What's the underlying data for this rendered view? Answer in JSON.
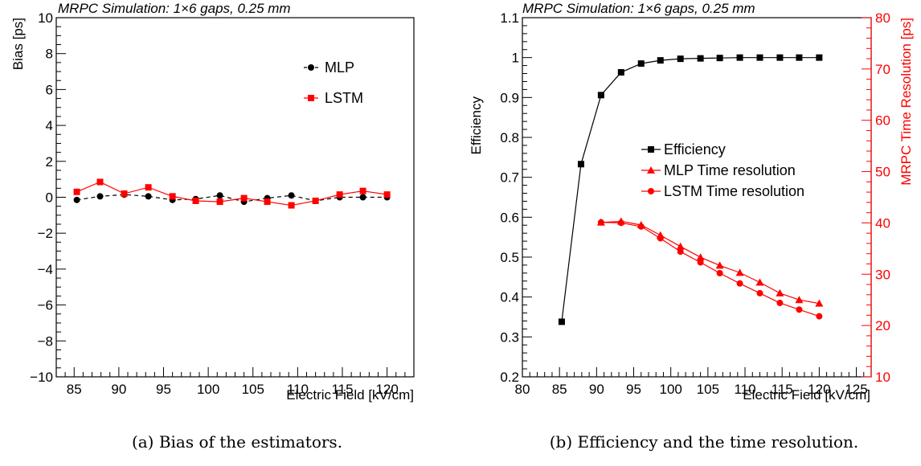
{
  "chart_data": [
    {
      "type": "line",
      "title": "MRPC Simulation: 1×6 gaps, 0.25 mm",
      "xlabel": "Electric Field [kV/cm]",
      "ylabel": "Bias [ps]",
      "xlim": [
        83,
        123
      ],
      "ylim": [
        -10,
        10
      ],
      "xticks": [
        85,
        90,
        95,
        100,
        105,
        110,
        115,
        120
      ],
      "yticks": [
        -10,
        -8,
        -6,
        -4,
        -2,
        0,
        2,
        4,
        6,
        8,
        10
      ],
      "legend_position": "top-right",
      "caption": "(a) Bias of the estimators.",
      "series": [
        {
          "name": "MLP",
          "color": "#000000",
          "marker": "circle",
          "line": "dashed",
          "x": [
            85.3,
            87.9,
            90.6,
            93.3,
            96.0,
            98.6,
            101.3,
            104.0,
            106.6,
            109.3,
            112.0,
            114.7,
            117.3,
            120.0
          ],
          "y": [
            -0.15,
            0.05,
            0.15,
            0.05,
            -0.15,
            -0.1,
            0.1,
            -0.25,
            -0.05,
            0.1,
            -0.2,
            0.0,
            0.0,
            0.0
          ]
        },
        {
          "name": "LSTM",
          "color": "#ff0000",
          "marker": "square",
          "line": "solid",
          "x": [
            85.3,
            87.9,
            90.6,
            93.3,
            96.0,
            98.6,
            101.3,
            104.0,
            106.6,
            109.3,
            112.0,
            114.7,
            117.3,
            120.0
          ],
          "y": [
            0.3,
            0.85,
            0.2,
            0.55,
            0.05,
            -0.2,
            -0.25,
            -0.05,
            -0.25,
            -0.45,
            -0.2,
            0.15,
            0.35,
            0.15
          ]
        }
      ]
    },
    {
      "type": "line",
      "title": "MRPC Simulation: 1×6 gaps, 0.25 mm",
      "xlabel": "Electric Field [kV/cm]",
      "ylabel": "Efficiency",
      "ylabel_right": "MRPC Time Resolution [ps]",
      "xlim": [
        80,
        127
      ],
      "ylim": [
        0.2,
        1.1
      ],
      "ylim_right": [
        10,
        80
      ],
      "xticks": [
        80,
        85,
        90,
        95,
        100,
        105,
        110,
        115,
        120,
        125
      ],
      "yticks": [
        0.2,
        0.3,
        0.4,
        0.5,
        0.6,
        0.7,
        0.8,
        0.9,
        1,
        1.1
      ],
      "yticks_right": [
        10,
        20,
        30,
        40,
        50,
        60,
        70,
        80
      ],
      "legend_position": "center-right",
      "caption": "(b) Efficiency and the time resolution.",
      "series": [
        {
          "name": "Efficiency",
          "axis": "left",
          "color": "#000000",
          "marker": "square",
          "x": [
            85.3,
            87.9,
            90.6,
            93.3,
            96.0,
            98.6,
            101.3,
            104.0,
            106.6,
            109.3,
            112.0,
            114.7,
            117.3,
            120.0
          ],
          "y": [
            0.338,
            0.733,
            0.906,
            0.963,
            0.985,
            0.993,
            0.997,
            0.998,
            0.999,
            1.0,
            1.0,
            1.0,
            1.0,
            1.0
          ]
        },
        {
          "name": "MLP Time resolution",
          "axis": "right",
          "color": "#ff0000",
          "marker": "triangle",
          "x": [
            90.6,
            93.3,
            96.0,
            98.6,
            101.3,
            104.0,
            106.6,
            109.3,
            112.0,
            114.7,
            117.3,
            120.0
          ],
          "y": [
            40.1,
            40.3,
            39.6,
            37.6,
            35.4,
            33.3,
            31.7,
            30.3,
            28.4,
            26.3,
            25.0,
            24.3
          ]
        },
        {
          "name": "LSTM Time resolution",
          "axis": "right",
          "color": "#ff0000",
          "marker": "circle",
          "x": [
            90.6,
            93.3,
            96.0,
            98.6,
            101.3,
            104.0,
            106.6,
            109.3,
            112.0,
            114.7,
            117.3,
            120.0
          ],
          "y": [
            40.1,
            40.0,
            39.3,
            37.0,
            34.4,
            32.3,
            30.2,
            28.2,
            26.3,
            24.4,
            23.1,
            21.8
          ]
        }
      ]
    }
  ]
}
